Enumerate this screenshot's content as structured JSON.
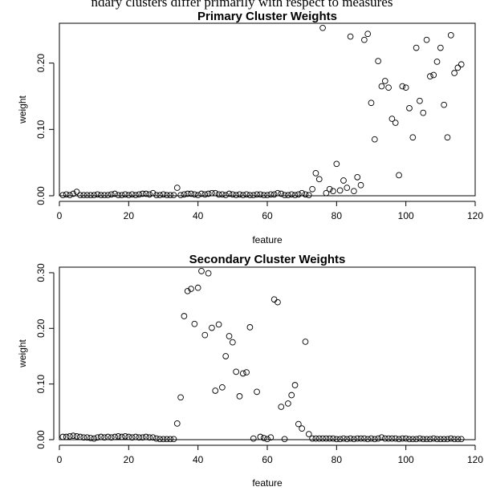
{
  "header_text": "ndary clusters differ primarily with respect to measures",
  "chart_data": [
    {
      "type": "scatter",
      "title": "Primary Cluster Weights",
      "xlabel": "feature",
      "ylabel": "weight",
      "xlim": [
        0,
        120
      ],
      "ylim": [
        0,
        0.26
      ],
      "xticks": [
        0,
        20,
        40,
        60,
        80,
        100,
        120
      ],
      "yticks": [
        0.0,
        0.1,
        0.2
      ],
      "ytick_labels": [
        "0.00",
        "0.10",
        "0.20"
      ],
      "x": [
        1,
        2,
        3,
        4,
        5,
        6,
        7,
        8,
        9,
        10,
        11,
        12,
        13,
        14,
        15,
        16,
        17,
        18,
        19,
        20,
        21,
        22,
        23,
        24,
        25,
        26,
        27,
        28,
        29,
        30,
        31,
        32,
        33,
        34,
        35,
        36,
        37,
        38,
        39,
        40,
        41,
        42,
        43,
        44,
        45,
        46,
        47,
        48,
        49,
        50,
        51,
        52,
        53,
        54,
        55,
        56,
        57,
        58,
        59,
        60,
        61,
        62,
        63,
        64,
        65,
        66,
        67,
        68,
        69,
        70,
        71,
        72,
        73,
        74,
        75,
        76,
        77,
        78,
        79,
        80,
        81,
        82,
        83,
        84,
        85,
        86,
        87,
        88,
        89,
        90,
        91,
        92,
        93,
        94,
        95,
        96,
        97,
        98,
        99,
        100,
        101,
        102,
        103,
        104,
        105,
        106,
        107,
        108,
        109,
        110,
        111,
        112,
        113,
        114,
        115,
        116
      ],
      "y": [
        0.001,
        0.002,
        0.001,
        0.003,
        0.006,
        0.001,
        0.001,
        0.001,
        0.001,
        0.001,
        0.002,
        0.001,
        0.001,
        0.001,
        0.002,
        0.003,
        0.001,
        0.001,
        0.002,
        0.001,
        0.002,
        0.001,
        0.002,
        0.003,
        0.003,
        0.002,
        0.004,
        0.001,
        0.001,
        0.002,
        0.001,
        0.001,
        0.001,
        0.012,
        0.001,
        0.002,
        0.003,
        0.003,
        0.002,
        0.001,
        0.003,
        0.002,
        0.003,
        0.004,
        0.004,
        0.002,
        0.002,
        0.001,
        0.003,
        0.002,
        0.001,
        0.002,
        0.001,
        0.002,
        0.001,
        0.001,
        0.002,
        0.002,
        0.001,
        0.001,
        0.002,
        0.002,
        0.004,
        0.003,
        0.001,
        0.001,
        0.002,
        0.001,
        0.002,
        0.004,
        0.002,
        0.001,
        0.01,
        0.034,
        0.025,
        0.253,
        0.004,
        0.01,
        0.007,
        0.048,
        0.008,
        0.023,
        0.012,
        0.24,
        0.007,
        0.028,
        0.016,
        0.235,
        0.244,
        0.14,
        0.085,
        0.203,
        0.165,
        0.173,
        0.163,
        0.116,
        0.11,
        0.031,
        0.165,
        0.163,
        0.132,
        0.088,
        0.223,
        0.143,
        0.125,
        0.235,
        0.18,
        0.182,
        0.202,
        0.223,
        0.137,
        0.088,
        0.242,
        0.185,
        0.193,
        0.198
      ]
    },
    {
      "type": "scatter",
      "title": "Secondary Cluster Weights",
      "xlabel": "feature",
      "ylabel": "weight",
      "xlim": [
        0,
        120
      ],
      "ylim": [
        0,
        0.31
      ],
      "xticks": [
        0,
        20,
        40,
        60,
        80,
        100,
        120
      ],
      "yticks": [
        0.0,
        0.1,
        0.2,
        0.3
      ],
      "ytick_labels": [
        "0.00",
        "0.10",
        "0.20",
        "0.30"
      ],
      "x": [
        1,
        2,
        3,
        4,
        5,
        6,
        7,
        8,
        9,
        10,
        11,
        12,
        13,
        14,
        15,
        16,
        17,
        18,
        19,
        20,
        21,
        22,
        23,
        24,
        25,
        26,
        27,
        28,
        29,
        30,
        31,
        32,
        33,
        34,
        35,
        36,
        37,
        38,
        39,
        40,
        41,
        42,
        43,
        44,
        45,
        46,
        47,
        48,
        49,
        50,
        51,
        52,
        53,
        54,
        55,
        56,
        57,
        58,
        59,
        60,
        61,
        62,
        63,
        64,
        65,
        66,
        67,
        68,
        69,
        70,
        71,
        72,
        73,
        74,
        75,
        76,
        77,
        78,
        79,
        80,
        81,
        82,
        83,
        84,
        85,
        86,
        87,
        88,
        89,
        90,
        91,
        92,
        93,
        94,
        95,
        96,
        97,
        98,
        99,
        100,
        101,
        102,
        103,
        104,
        105,
        106,
        107,
        108,
        109,
        110,
        111,
        112,
        113,
        114,
        115,
        116
      ],
      "y": [
        0.005,
        0.005,
        0.006,
        0.007,
        0.006,
        0.005,
        0.004,
        0.004,
        0.003,
        0.002,
        0.004,
        0.005,
        0.004,
        0.005,
        0.004,
        0.005,
        0.006,
        0.005,
        0.006,
        0.005,
        0.004,
        0.005,
        0.004,
        0.004,
        0.005,
        0.004,
        0.004,
        0.002,
        0.001,
        0.001,
        0.001,
        0.001,
        0.001,
        0.029,
        0.076,
        0.222,
        0.267,
        0.271,
        0.208,
        0.273,
        0.303,
        0.188,
        0.299,
        0.201,
        0.088,
        0.207,
        0.094,
        0.15,
        0.186,
        0.175,
        0.122,
        0.078,
        0.119,
        0.121,
        0.202,
        0.002,
        0.086,
        0.005,
        0.003,
        0.001,
        0.004,
        0.252,
        0.247,
        0.059,
        0.001,
        0.065,
        0.08,
        0.098,
        0.028,
        0.02,
        0.176,
        0.01,
        0.002,
        0.002,
        0.002,
        0.002,
        0.002,
        0.002,
        0.002,
        0.001,
        0.001,
        0.002,
        0.001,
        0.002,
        0.001,
        0.002,
        0.002,
        0.002,
        0.001,
        0.002,
        0.001,
        0.002,
        0.004,
        0.002,
        0.002,
        0.002,
        0.002,
        0.001,
        0.002,
        0.002,
        0.001,
        0.001,
        0.001,
        0.002,
        0.001,
        0.001,
        0.001,
        0.002,
        0.001,
        0.001,
        0.001,
        0.001,
        0.002,
        0.001,
        0.001,
        0.001
      ]
    }
  ]
}
